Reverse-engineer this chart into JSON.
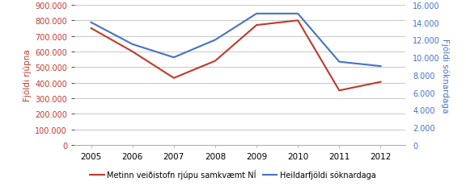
{
  "years": [
    2005,
    2006,
    2007,
    2008,
    2009,
    2010,
    2011,
    2012
  ],
  "red_values": [
    750000,
    600000,
    430000,
    540000,
    770000,
    800000,
    350000,
    405000
  ],
  "blue_values": [
    14000,
    11500,
    10000,
    12000,
    15000,
    15000,
    9500,
    9000
  ],
  "red_color": "#C0392B",
  "blue_color": "#4472C4",
  "left_ylabel": "Fjöldi rjúpna",
  "right_ylabel": "Fjöldi sóknardaga",
  "left_ylim": [
    0,
    900000
  ],
  "right_ylim": [
    0,
    16000
  ],
  "left_yticks": [
    0,
    100000,
    200000,
    300000,
    400000,
    500000,
    600000,
    700000,
    800000,
    900000
  ],
  "right_yticks": [
    0,
    2000,
    4000,
    6000,
    8000,
    10000,
    12000,
    14000,
    16000
  ],
  "legend_red": "Metinn veiðistofn rjúpu samkvæmt NÍ",
  "legend_blue": "Heildarfjöldi sóknardaga",
  "background_color": "#FFFFFF",
  "grid_color": "#C8C8C8",
  "left_label_color": "#C0392B",
  "right_label_color": "#4472C4",
  "left_tick_color": "#C0392B",
  "right_tick_color": "#4472C4",
  "spine_color": "#AAAAAA",
  "xlim": [
    2004.6,
    2012.6
  ]
}
